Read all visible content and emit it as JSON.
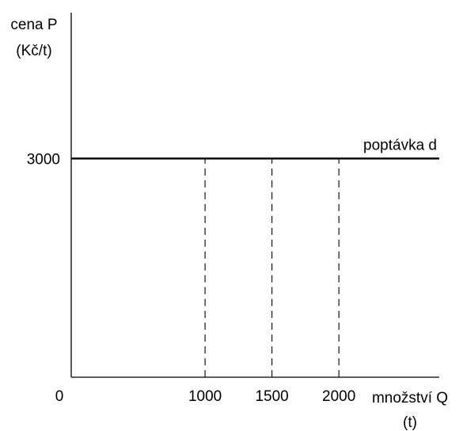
{
  "chart_data": {
    "type": "line",
    "title": "",
    "ylabel": [
      "cena P",
      "(Kč/t)"
    ],
    "xlabel": [
      "množství Q",
      "(t)"
    ],
    "origin_label": "0",
    "ylim": [
      0,
      5000
    ],
    "xlim": [
      0,
      2750
    ],
    "y_ticks": [
      {
        "value": 3000,
        "label": "3000"
      }
    ],
    "x_ticks": [
      {
        "value": 1000,
        "label": "1000"
      },
      {
        "value": 1500,
        "label": "1500"
      },
      {
        "value": 2000,
        "label": "2000"
      }
    ],
    "series": [
      {
        "name": "poptávka d",
        "x": [
          0,
          2750
        ],
        "y": [
          3000,
          3000
        ]
      }
    ],
    "reference_lines": [
      {
        "x": 1000,
        "y_from": 0,
        "y_to": 3000,
        "style": "dashed"
      },
      {
        "x": 1500,
        "y_from": 0,
        "y_to": 3000,
        "style": "dashed"
      },
      {
        "x": 2000,
        "y_from": 0,
        "y_to": 3000,
        "style": "dashed"
      }
    ],
    "grid": false,
    "legend": "none"
  }
}
